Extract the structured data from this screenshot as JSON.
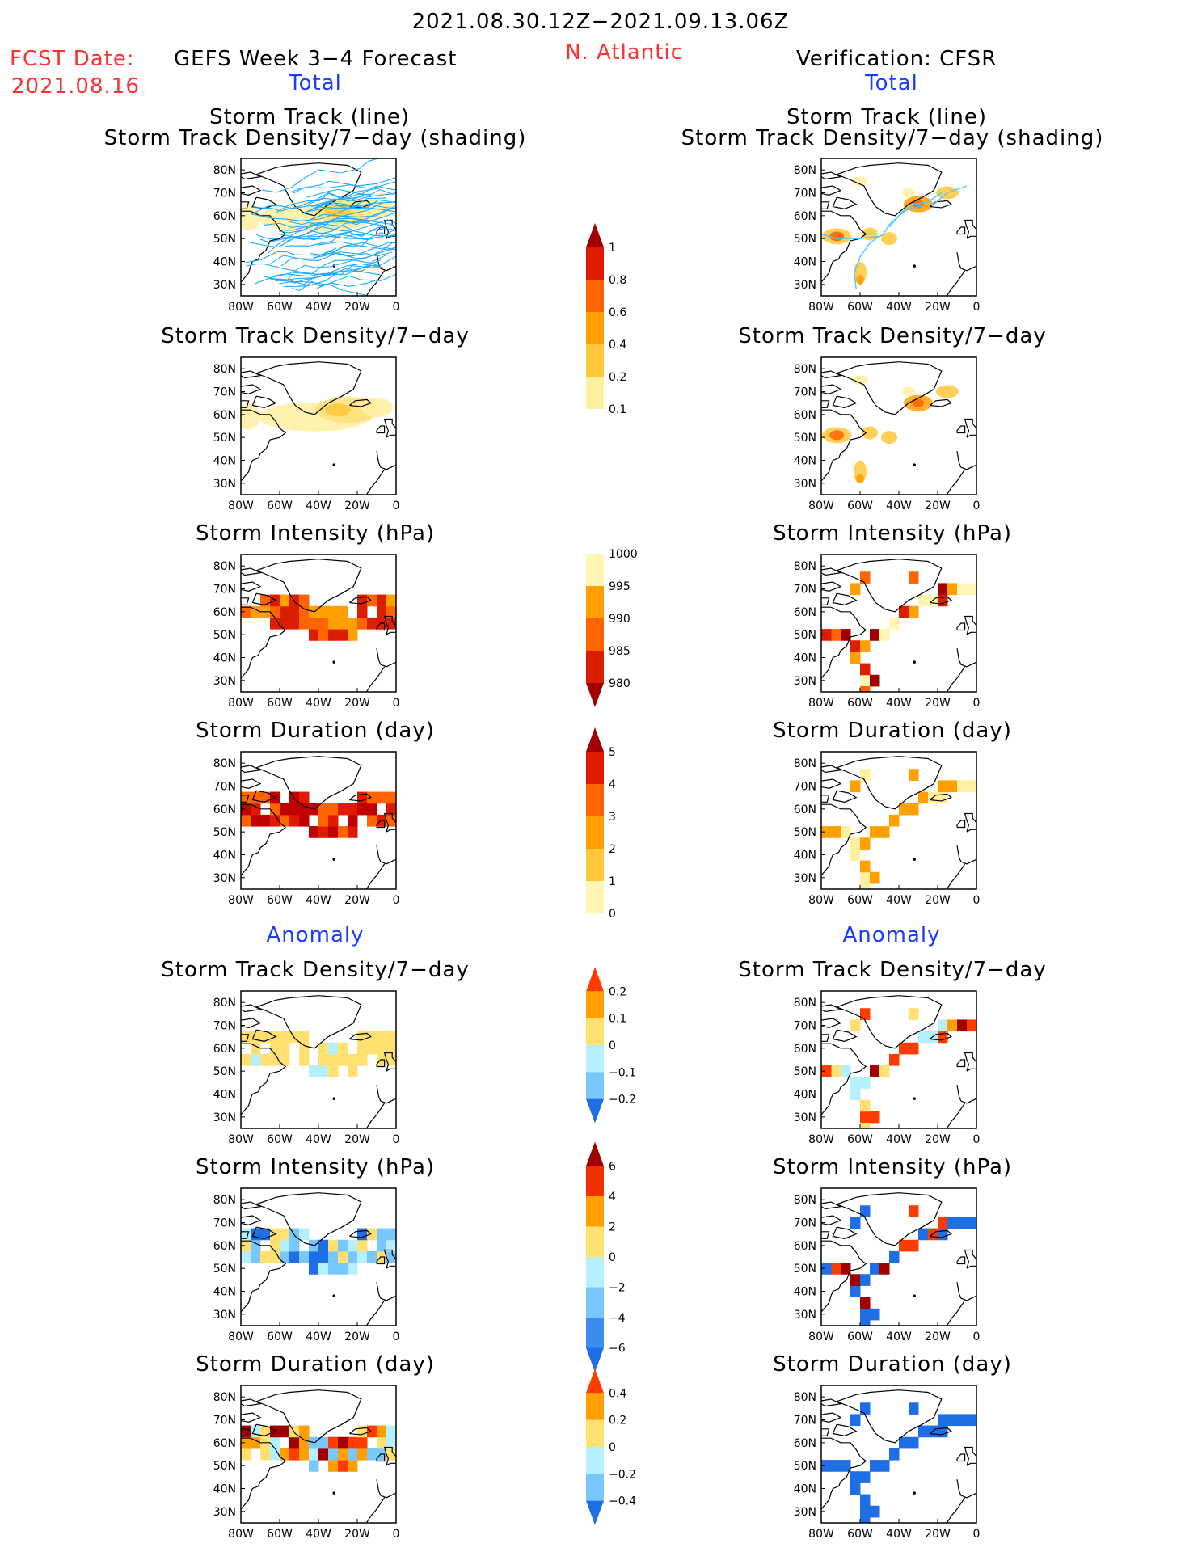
{
  "header": {
    "period": "2021.08.30.12Z−2021.09.13.06Z",
    "fcst_label": "FCST Date:",
    "fcst_date": "2021.08.16",
    "model_label": "GEFS Week 3−4 Forecast",
    "region": "N. Atlantic",
    "verif_label": "Verification: CFSR"
  },
  "sections": {
    "total": "Total",
    "anomaly": "Anomaly"
  },
  "panel_titles": {
    "track_1": "Storm Track (line)",
    "track_2": "Storm Track Density/7−day (shading)",
    "density": "Storm Track Density/7−day",
    "intensity": "Storm Intensity (hPa)",
    "duration": "Storm Duration (day)"
  },
  "axes": {
    "lat_ticks": [
      "80N",
      "70N",
      "60N",
      "50N",
      "40N",
      "30N"
    ],
    "lon_ticks": [
      "80W",
      "60W",
      "40W",
      "20W",
      "0"
    ]
  },
  "colors": {
    "title_red": "#ff3030",
    "section_blue": "#1a3cff",
    "track_forecast": "#1eaaff",
    "track_cfsr": "#4bc8ff"
  },
  "chart_data": [
    {
      "type": "heatmap",
      "panel": "forecast-total-track",
      "title": "Storm Track (line) / Storm Track Density/7−day (shading)",
      "xlim": [
        -80,
        0
      ],
      "ylim": [
        25,
        85
      ]
    },
    {
      "type": "heatmap",
      "panel": "forecast-total-density",
      "title": "Storm Track Density/7−day",
      "xlim": [
        -80,
        0
      ],
      "ylim": [
        25,
        85
      ],
      "colorbar": [
        0.1,
        0.2,
        0.4,
        0.6,
        0.8,
        1
      ]
    },
    {
      "type": "heatmap",
      "panel": "forecast-total-intensity",
      "title": "Storm Intensity (hPa)",
      "xlim": [
        -80,
        0
      ],
      "ylim": [
        25,
        85
      ],
      "colorbar": [
        1000,
        995,
        990,
        985,
        980
      ]
    },
    {
      "type": "heatmap",
      "panel": "forecast-total-duration",
      "title": "Storm Duration (day)",
      "xlim": [
        -80,
        0
      ],
      "ylim": [
        25,
        85
      ],
      "colorbar": [
        5,
        4,
        3,
        2,
        1,
        0
      ]
    },
    {
      "type": "heatmap",
      "panel": "forecast-anomaly-density",
      "title": "Storm Track Density/7−day",
      "xlim": [
        -80,
        0
      ],
      "ylim": [
        25,
        85
      ],
      "colorbar": [
        0.2,
        0.1,
        0,
        -0.1,
        -0.2
      ]
    },
    {
      "type": "heatmap",
      "panel": "forecast-anomaly-intensity",
      "title": "Storm Intensity (hPa)",
      "xlim": [
        -80,
        0
      ],
      "ylim": [
        25,
        85
      ],
      "colorbar": [
        6,
        4,
        2,
        0,
        -2,
        -4,
        -6
      ]
    },
    {
      "type": "heatmap",
      "panel": "forecast-anomaly-duration",
      "title": "Storm Duration (day)",
      "xlim": [
        -80,
        0
      ],
      "ylim": [
        25,
        85
      ],
      "colorbar": [
        0.4,
        0.2,
        0,
        -0.2,
        -0.4
      ]
    },
    {
      "type": "heatmap",
      "panel": "cfsr-total-track",
      "title": "Storm Track (line) / Storm Track Density/7−day (shading)",
      "xlim": [
        -80,
        0
      ],
      "ylim": [
        25,
        85
      ]
    },
    {
      "type": "heatmap",
      "panel": "cfsr-total-density",
      "title": "Storm Track Density/7−day",
      "xlim": [
        -80,
        0
      ],
      "ylim": [
        25,
        85
      ]
    },
    {
      "type": "heatmap",
      "panel": "cfsr-total-intensity",
      "title": "Storm Intensity (hPa)",
      "xlim": [
        -80,
        0
      ],
      "ylim": [
        25,
        85
      ]
    },
    {
      "type": "heatmap",
      "panel": "cfsr-total-duration",
      "title": "Storm Duration (day)",
      "xlim": [
        -80,
        0
      ],
      "ylim": [
        25,
        85
      ]
    },
    {
      "type": "heatmap",
      "panel": "cfsr-anomaly-density",
      "title": "Storm Track Density/7−day",
      "xlim": [
        -80,
        0
      ],
      "ylim": [
        25,
        85
      ]
    },
    {
      "type": "heatmap",
      "panel": "cfsr-anomaly-intensity",
      "title": "Storm Intensity (hPa)",
      "xlim": [
        -80,
        0
      ],
      "ylim": [
        25,
        85
      ]
    },
    {
      "type": "heatmap",
      "panel": "cfsr-anomaly-duration",
      "title": "Storm Duration (day)",
      "xlim": [
        -80,
        0
      ],
      "ylim": [
        25,
        85
      ]
    }
  ],
  "colorbars": [
    {
      "name": "total-density",
      "labels": [
        "1",
        "0.8",
        "0.6",
        "0.4",
        "0.2",
        "0.1"
      ],
      "colors": [
        "#a00000",
        "#e01a00",
        "#ff6400",
        "#ffa000",
        "#ffc83c",
        "#fff0a0"
      ],
      "arrow_top": true,
      "arrow_bottom": false
    },
    {
      "name": "total-intensity",
      "labels": [
        "1000",
        "995",
        "990",
        "985",
        "980"
      ],
      "colors": [
        "#fff6b4",
        "#ffa000",
        "#ff6400",
        "#dc1e00",
        "#a00000"
      ],
      "arrow_top": false,
      "arrow_bottom": true
    },
    {
      "name": "total-duration",
      "labels": [
        "5",
        "4",
        "3",
        "2",
        "1",
        "0"
      ],
      "colors": [
        "#a00000",
        "#e01a00",
        "#ff6400",
        "#ffa000",
        "#ffc83c",
        "#fff6b4"
      ],
      "arrow_top": true,
      "arrow_bottom": false
    },
    {
      "name": "anomaly-density",
      "labels": [
        "0.2",
        "0.1",
        "0",
        "−0.1",
        "−0.2"
      ],
      "colors": [
        "#ff3c00",
        "#ffa000",
        "#ffe070",
        "#b4f0ff",
        "#78c8ff",
        "#1e6ee6"
      ],
      "arrow_top": true,
      "arrow_bottom": true
    },
    {
      "name": "anomaly-intensity",
      "labels": [
        "6",
        "4",
        "2",
        "0",
        "−2",
        "−4",
        "−6"
      ],
      "colors": [
        "#a00000",
        "#f03000",
        "#ffa000",
        "#ffe070",
        "#b4f0ff",
        "#78c8ff",
        "#3c8cf0",
        "#1e6ee6"
      ],
      "arrow_top": true,
      "arrow_bottom": true
    },
    {
      "name": "anomaly-duration",
      "labels": [
        "0.4",
        "0.2",
        "0",
        "−0.2",
        "−0.4"
      ],
      "colors": [
        "#ff3c00",
        "#ffa000",
        "#ffe070",
        "#b4f0ff",
        "#78c8ff",
        "#1e6ee6"
      ],
      "arrow_top": true,
      "arrow_bottom": true
    }
  ]
}
